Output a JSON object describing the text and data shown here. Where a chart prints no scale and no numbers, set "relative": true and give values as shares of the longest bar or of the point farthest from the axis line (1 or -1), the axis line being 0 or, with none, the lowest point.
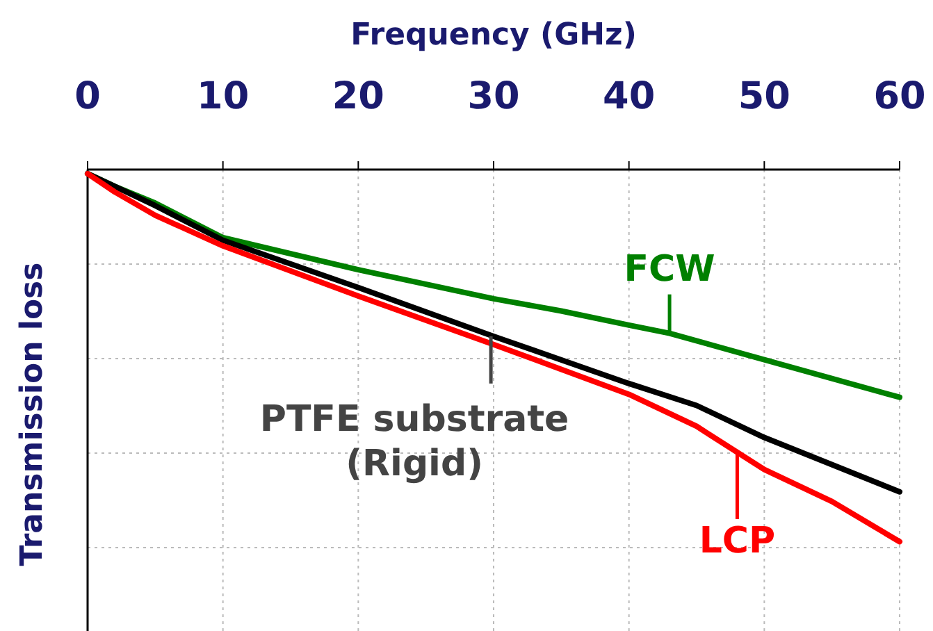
{
  "chart_data": {
    "type": "line",
    "xlabel": "Frequency (GHz)",
    "ylabel": "Transmission loss",
    "relative": true,
    "xlim": [
      0,
      60
    ],
    "xticks": [
      0,
      10,
      20,
      30,
      40,
      50,
      60
    ],
    "grid": true,
    "marker": "none",
    "line_style": "solid",
    "series": [
      {
        "color": "#008000",
        "x": [
          0,
          2,
          5,
          10,
          20,
          30,
          35,
          40,
          43,
          50,
          60
        ],
        "values": [
          -0.011,
          -0.045,
          -0.09,
          -0.183,
          -0.269,
          -0.347,
          -0.38,
          -0.418,
          -0.44,
          -0.511,
          -0.612
        ]
      },
      {
        "color": "#000000",
        "x": [
          0,
          2,
          5,
          10,
          20,
          30,
          40,
          45,
          50,
          60
        ],
        "values": [
          -0.011,
          -0.045,
          -0.097,
          -0.19,
          -0.317,
          -0.448,
          -0.575,
          -0.634,
          -0.72,
          -0.866
        ]
      },
      {
        "color": "#ff0000",
        "x": [
          0,
          2,
          5,
          10,
          20,
          30,
          40,
          45,
          50,
          55,
          60
        ],
        "values": [
          -0.011,
          -0.06,
          -0.123,
          -0.205,
          -0.34,
          -0.47,
          -0.604,
          -0.69,
          -0.806,
          -0.892,
          -1
        ]
      }
    ],
    "annotations": [
      {
        "text": "FCW",
        "x": 43,
        "y": -0.44
      },
      {
        "text": "PTFE substrate\n(Rigid)",
        "x": 29.8,
        "y": -0.448
      },
      {
        "text": "LCP",
        "x": 48,
        "y": -0.76
      }
    ]
  }
}
